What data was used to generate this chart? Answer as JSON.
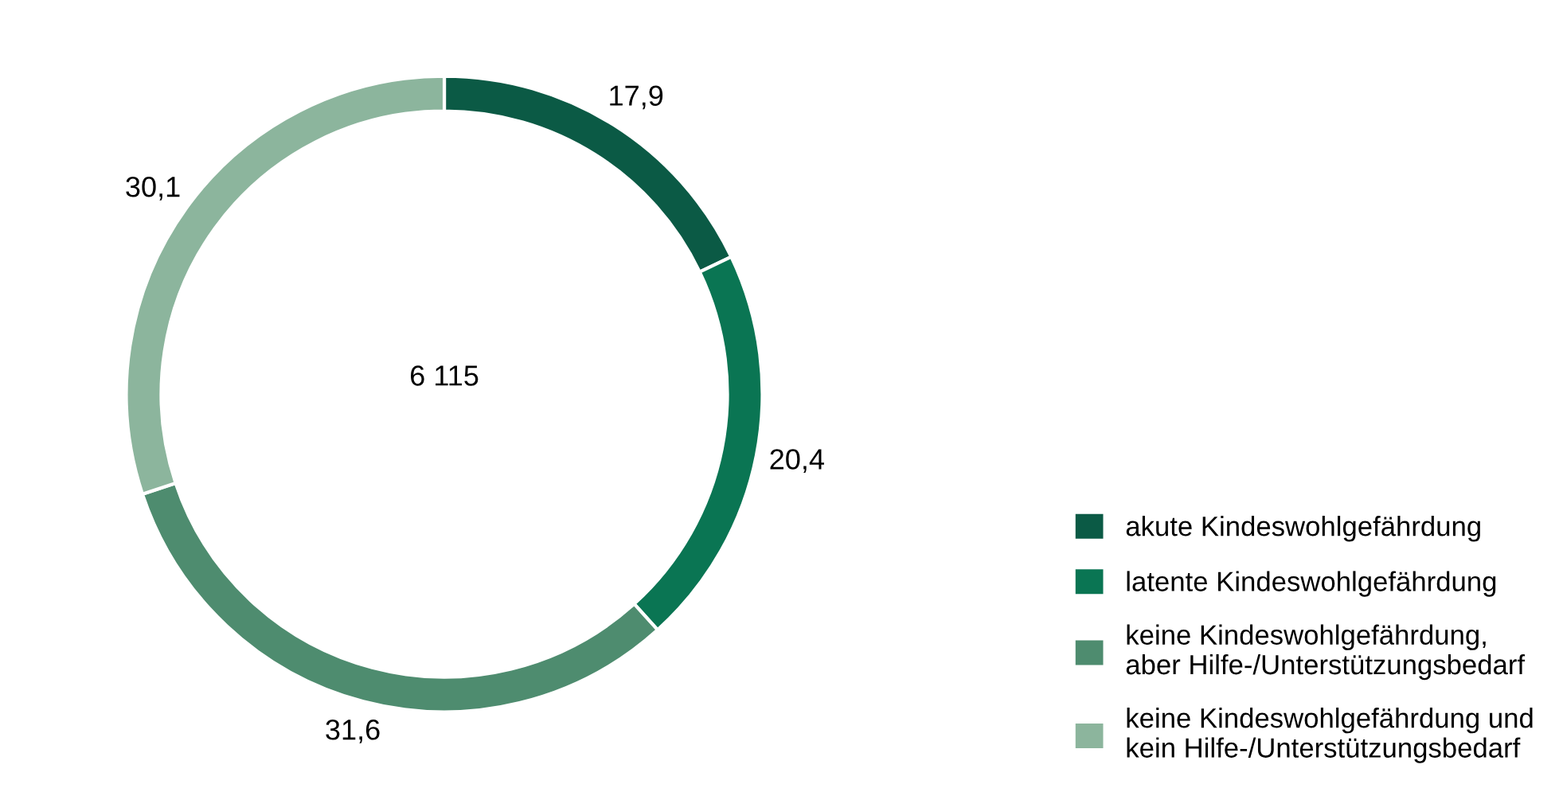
{
  "chart_data": {
    "type": "donut",
    "categories": [
      "akute Kindeswohlgefährdung",
      "latente Kindeswohlgefährdung",
      "keine Kindeswohlgefährdung,\naber Hilfe-/Unterstützungsbedarf",
      "keine Kindeswohlgefährdung und\nkein Hilfe-/Unterstützungsbedarf"
    ],
    "values": [
      17.9,
      20.4,
      31.6,
      30.1
    ],
    "value_labels": [
      "17,9",
      "20,4",
      "31,6",
      "30,1"
    ],
    "colors": [
      "#0b5a45",
      "#0a7553",
      "#4e8c6f",
      "#8cb59d"
    ],
    "annotations": [
      "6 115"
    ],
    "legend": "bottom right"
  }
}
